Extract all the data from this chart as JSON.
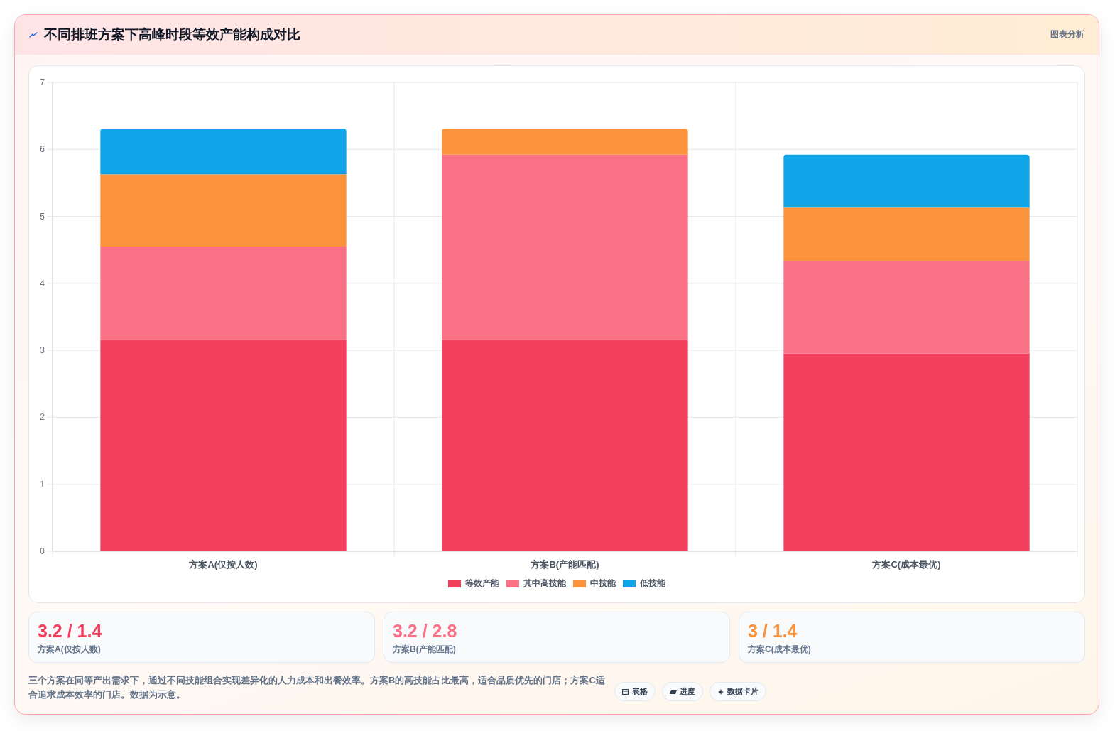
{
  "chart_data": [
    {
      "type": "bar",
      "title": "不同排班方案下高峰时段等效产能构成对比",
      "categories": [
        "方案A(仅按人数)",
        "方案B(产能匹配)",
        "方案C(成本最优)"
      ],
      "series": [
        {
          "name": "等效产能",
          "color": "#f23f5e",
          "values": [
            3.15,
            3.15,
            2.95
          ]
        },
        {
          "name": "其中高技能",
          "color": "#fb7185",
          "values": [
            1.4,
            2.77,
            1.38
          ]
        },
        {
          "name": "中技能",
          "color": "#fb923c",
          "values": [
            1.08,
            0.39,
            0.8
          ]
        },
        {
          "name": "低技能",
          "color": "#0ea5e9",
          "values": [
            0.68,
            0,
            0.79
          ]
        }
      ],
      "stacked": true,
      "ylim": [
        0,
        7
      ],
      "yticks": [
        0,
        1,
        2,
        3,
        4,
        5,
        6,
        7
      ],
      "grid": true,
      "legend": "bottom",
      "annotations": [
        "图表分析",
        "三个方案在同等产出需求下，通过不同技能组合实现差异化的人力成本和出餐效率。方案B的高技能占比最高，适合品质优先的门店；方案C适合追求成本效率的门店。数据为示意。",
        "表格",
        "进度",
        "数据卡片"
      ]
    },
    {
      "type": "other",
      "title": "3.2 / 1.4",
      "subtitle": "方案A(仅按人数)",
      "color": "#f23f5e"
    },
    {
      "type": "other",
      "title": "3.2 / 2.8",
      "subtitle": "方案B(产能匹配)",
      "color": "#fb7185"
    },
    {
      "type": "other",
      "title": "3 / 1.4",
      "subtitle": "方案C(成本最优)",
      "color": "#fb923c"
    }
  ]
}
